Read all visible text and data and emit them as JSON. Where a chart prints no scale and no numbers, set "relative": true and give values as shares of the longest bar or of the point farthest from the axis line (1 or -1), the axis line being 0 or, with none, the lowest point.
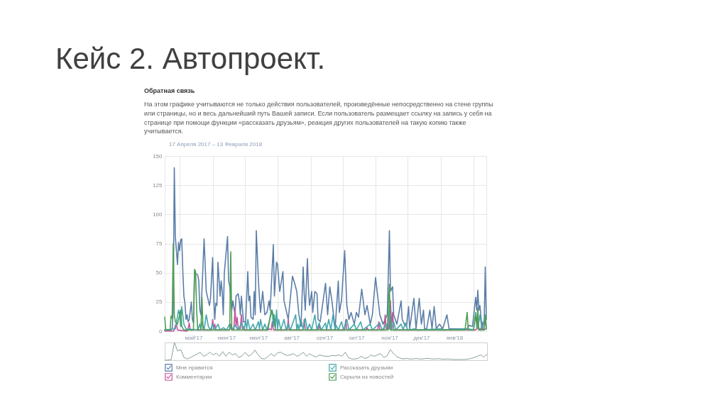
{
  "chart_data": [
    {
      "type": "line",
      "title": "Кейс 2. Автопроект.",
      "subtitle": "Обратная связь",
      "annotations": [
        "На этом графике учитываются не только действия пользователей, произведённые непосредственно на стене группы или страницы, но и весь дальнейший путь Вашей записи. Если пользователь размещает ссылку на запись у себя на странице при помощи функции «рассказать друзьям», реакция других пользователей на такую копию также учитывается.",
        "17 Апреля 2017 – 13 Февраля 2018"
      ],
      "xlim": [
        "2017-04-17",
        "2018-02-13"
      ],
      "xticks": [
        {
          "value": "2017-05-01",
          "label": null
        },
        {
          "value": "2017-05-14",
          "label": "май'17"
        },
        {
          "value": "2017-06-01",
          "label": null
        },
        {
          "value": "2017-06-14",
          "label": "июн'17"
        },
        {
          "value": "2017-07-01",
          "label": null
        },
        {
          "value": "2017-07-14",
          "label": "июл'17"
        },
        {
          "value": "2017-08-01",
          "label": null
        },
        {
          "value": "2017-08-14",
          "label": "авг'17"
        },
        {
          "value": "2017-09-01",
          "label": null
        },
        {
          "value": "2017-09-14",
          "label": "сен'17"
        },
        {
          "value": "2017-10-01",
          "label": null
        },
        {
          "value": "2017-10-14",
          "label": "окт'17"
        },
        {
          "value": "2017-11-01",
          "label": null
        },
        {
          "value": "2017-11-14",
          "label": "ноя'17"
        },
        {
          "value": "2017-12-01",
          "label": null
        },
        {
          "value": "2017-12-14",
          "label": "дек'17"
        },
        {
          "value": "2018-01-01",
          "label": null
        },
        {
          "value": "2018-01-14",
          "label": "янв'18"
        },
        {
          "value": "2018-02-01",
          "label": null
        }
      ],
      "ylim": [
        0,
        150
      ],
      "yticks": [
        0,
        25,
        50,
        75,
        100,
        125,
        150
      ],
      "grid": true,
      "legend": "bottom",
      "series": [
        {
          "name": "Мне нравится",
          "color": "#5b7ea8",
          "x": [
            "2017-04-17",
            "2017-04-23",
            "2017-04-24",
            "2017-04-25",
            "2017-04-26",
            "2017-04-27",
            "2017-04-28",
            "2017-04-29",
            "2017-04-30",
            "2017-05-01",
            "2017-05-02",
            "2017-05-03",
            "2017-05-04",
            "2017-05-05",
            "2017-05-06",
            "2017-05-07",
            "2017-05-08",
            "2017-05-09",
            "2017-05-10",
            "2017-05-12",
            "2017-05-13",
            "2017-05-14",
            "2017-05-15",
            "2017-05-18",
            "2017-05-19",
            "2017-05-20",
            "2017-05-21",
            "2017-05-24",
            "2017-05-26",
            "2017-05-28",
            "2017-05-29",
            "2017-05-30",
            "2017-06-01",
            "2017-06-02",
            "2017-06-03",
            "2017-06-04",
            "2017-06-05",
            "2017-06-06",
            "2017-06-08",
            "2017-06-09",
            "2017-06-10",
            "2017-06-11",
            "2017-06-12",
            "2017-06-15",
            "2017-06-16",
            "2017-06-17",
            "2017-06-18",
            "2017-06-19",
            "2017-06-20",
            "2017-06-22",
            "2017-06-23",
            "2017-06-25",
            "2017-06-26",
            "2017-06-27",
            "2017-06-28",
            "2017-06-30",
            "2017-07-02",
            "2017-07-04",
            "2017-07-05",
            "2017-07-06",
            "2017-07-07",
            "2017-07-09",
            "2017-07-10",
            "2017-07-11",
            "2017-07-12",
            "2017-07-14",
            "2017-07-15",
            "2017-07-16",
            "2017-07-18",
            "2017-07-19",
            "2017-07-20",
            "2017-07-22",
            "2017-07-24",
            "2017-07-25",
            "2017-07-28",
            "2017-07-29",
            "2017-07-31",
            "2017-08-01",
            "2017-08-03",
            "2017-08-06",
            "2017-08-07",
            "2017-08-09",
            "2017-08-11",
            "2017-08-15",
            "2017-08-17",
            "2017-08-19",
            "2017-08-21",
            "2017-08-23",
            "2017-08-25",
            "2017-08-26",
            "2017-08-27",
            "2017-08-29",
            "2017-08-30",
            "2017-08-31",
            "2017-09-02",
            "2017-09-03",
            "2017-09-05",
            "2017-09-07",
            "2017-09-08",
            "2017-09-10",
            "2017-09-15",
            "2017-09-17",
            "2017-09-19",
            "2017-09-21",
            "2017-09-24",
            "2017-09-27",
            "2017-09-28",
            "2017-09-30",
            "2017-10-03",
            "2017-10-05",
            "2017-10-07",
            "2017-10-09",
            "2017-10-12",
            "2017-10-14",
            "2017-10-16",
            "2017-10-19",
            "2017-10-22",
            "2017-10-24",
            "2017-10-27",
            "2017-10-29",
            "2017-11-01",
            "2017-11-03",
            "2017-11-05",
            "2017-11-08",
            "2017-11-12",
            "2017-11-14",
            "2017-11-15",
            "2017-11-17",
            "2017-11-18",
            "2017-11-21",
            "2017-11-23",
            "2017-11-25",
            "2017-11-26",
            "2017-11-28",
            "2017-11-30",
            "2017-12-02",
            "2017-12-03",
            "2017-12-07",
            "2017-12-09",
            "2017-12-12",
            "2017-12-14",
            "2017-12-16",
            "2017-12-17",
            "2017-12-19",
            "2017-12-22",
            "2017-12-24",
            "2017-12-26",
            "2017-12-28",
            "2017-12-31",
            "2018-01-03",
            "2018-01-07",
            "2018-01-09",
            "2018-01-18",
            "2018-01-26",
            "2018-01-28",
            "2018-01-31",
            "2018-02-03",
            "2018-02-04",
            "2018-02-05",
            "2018-02-06",
            "2018-02-07",
            "2018-02-09",
            "2018-02-11",
            "2018-02-12",
            "2018-02-13"
          ],
          "values": [
            1,
            1,
            2,
            18,
            140,
            81,
            69,
            57,
            76,
            69,
            78,
            79,
            51,
            30,
            24,
            10,
            14,
            8,
            10,
            25,
            10,
            7,
            50,
            48,
            43,
            18,
            14,
            79,
            34,
            26,
            22,
            28,
            63,
            30,
            10,
            24,
            22,
            59,
            30,
            43,
            34,
            14,
            50,
            81,
            43,
            39,
            30,
            18,
            26,
            14,
            30,
            32,
            26,
            14,
            30,
            8,
            8,
            51,
            26,
            30,
            12,
            10,
            34,
            14,
            86,
            43,
            28,
            16,
            34,
            24,
            14,
            16,
            26,
            18,
            74,
            30,
            59,
            57,
            34,
            51,
            26,
            18,
            10,
            47,
            41,
            34,
            14,
            4,
            55,
            32,
            18,
            62,
            36,
            22,
            34,
            16,
            34,
            32,
            10,
            8,
            41,
            14,
            38,
            26,
            2,
            43,
            16,
            26,
            69,
            22,
            10,
            16,
            6,
            16,
            12,
            36,
            14,
            22,
            6,
            14,
            46,
            30,
            14,
            6,
            14,
            86,
            34,
            38,
            14,
            6,
            16,
            26,
            10,
            6,
            4,
            21,
            2,
            28,
            2,
            28,
            6,
            18,
            2,
            2,
            18,
            2,
            21,
            2,
            6,
            2,
            14,
            2,
            2,
            2,
            5,
            4,
            29,
            18,
            35,
            18,
            22,
            2,
            8,
            55,
            10
          ]
        },
        {
          "name": "Комментарии",
          "color": "#c2569f",
          "x": [
            "2017-04-17",
            "2017-04-25",
            "2017-04-26",
            "2017-04-27",
            "2017-04-28",
            "2017-04-29",
            "2017-05-08",
            "2017-05-09",
            "2017-05-10",
            "2017-05-11",
            "2017-05-31",
            "2017-06-01",
            "2017-06-02",
            "2017-06-03",
            "2017-06-04",
            "2017-06-17",
            "2017-06-18",
            "2017-06-19",
            "2017-06-21",
            "2017-06-22",
            "2017-06-23",
            "2017-06-24",
            "2017-06-25",
            "2017-06-27",
            "2017-06-28",
            "2017-06-29",
            "2017-06-30",
            "2017-07-01",
            "2017-07-23",
            "2017-07-24",
            "2017-07-26",
            "2017-07-27",
            "2017-07-28",
            "2017-08-10",
            "2017-08-11",
            "2017-08-12",
            "2017-08-25",
            "2017-08-26",
            "2017-08-27",
            "2017-09-08",
            "2017-09-09",
            "2017-09-10",
            "2017-10-03",
            "2017-10-04",
            "2017-10-05",
            "2017-10-23",
            "2017-10-24",
            "2017-10-25",
            "2017-11-03",
            "2017-11-04",
            "2017-11-05",
            "2017-11-09",
            "2017-11-10",
            "2017-11-11",
            "2017-11-13",
            "2017-11-14",
            "2017-11-15",
            "2017-11-16",
            "2017-11-17",
            "2017-11-18",
            "2017-12-03",
            "2018-02-03",
            "2018-02-04",
            "2018-02-05",
            "2018-02-06",
            "2018-02-07",
            "2018-02-08",
            "2018-02-09",
            "2018-02-10",
            "2018-02-13"
          ],
          "values": [
            0,
            0,
            1,
            5,
            6,
            1,
            0,
            2,
            7,
            1,
            1,
            10,
            2,
            6,
            1,
            1,
            6,
            1,
            2,
            20,
            4,
            12,
            2,
            2,
            14,
            2,
            4,
            1,
            1,
            2,
            1,
            8,
            1,
            1,
            10,
            1,
            1,
            10,
            1,
            1,
            6,
            1,
            1,
            10,
            1,
            1,
            3,
            1,
            1,
            8,
            1,
            1,
            14,
            2,
            4,
            2,
            26,
            4,
            16,
            1,
            1,
            1,
            2,
            14,
            1,
            2,
            1,
            8,
            1,
            2
          ]
        },
        {
          "name": "Рассказать друзьям",
          "color": "#45a8ad",
          "x": [
            "2017-04-17",
            "2017-04-27",
            "2017-04-30",
            "2017-05-01",
            "2017-05-02",
            "2017-05-03",
            "2017-05-05",
            "2017-05-07",
            "2017-05-18",
            "2017-05-20",
            "2017-05-21",
            "2017-05-22",
            "2017-05-24",
            "2017-05-26",
            "2017-05-28",
            "2017-05-30",
            "2017-06-01",
            "2017-06-03",
            "2017-06-06",
            "2017-06-08",
            "2017-06-11",
            "2017-06-14",
            "2017-06-17",
            "2017-06-19",
            "2017-06-22",
            "2017-06-25",
            "2017-06-28",
            "2017-06-30",
            "2017-07-02",
            "2017-07-03",
            "2017-07-04",
            "2017-07-06",
            "2017-07-09",
            "2017-07-11",
            "2017-07-14",
            "2017-07-15",
            "2017-07-16",
            "2017-07-18",
            "2017-07-20",
            "2017-07-22",
            "2017-07-27",
            "2017-07-28",
            "2017-07-29",
            "2017-07-30",
            "2017-07-31",
            "2017-08-01",
            "2017-08-02",
            "2017-08-04",
            "2017-08-07",
            "2017-08-09",
            "2017-08-11",
            "2017-08-13",
            "2017-08-18",
            "2017-08-19",
            "2017-08-20",
            "2017-08-21",
            "2017-08-23",
            "2017-08-25",
            "2017-08-27",
            "2017-08-29",
            "2017-08-31",
            "2017-09-02",
            "2017-09-05",
            "2017-09-07",
            "2017-09-09",
            "2017-09-11",
            "2017-09-15",
            "2017-09-16",
            "2017-09-18",
            "2017-09-20",
            "2017-09-22",
            "2017-09-24",
            "2017-09-25",
            "2017-09-27",
            "2017-09-30",
            "2017-10-02",
            "2017-10-05",
            "2017-10-07",
            "2017-10-12",
            "2017-10-14",
            "2017-10-18",
            "2017-10-20",
            "2017-10-27",
            "2017-10-29",
            "2017-11-05",
            "2017-11-07",
            "2017-11-12",
            "2017-11-13",
            "2017-11-14",
            "2017-11-16",
            "2017-11-18",
            "2017-11-20",
            "2017-11-25",
            "2017-11-27",
            "2017-11-29",
            "2017-12-01",
            "2017-12-08",
            "2017-12-10",
            "2018-01-02",
            "2018-01-04",
            "2018-01-27",
            "2018-02-01",
            "2018-02-03",
            "2018-02-05",
            "2018-02-07",
            "2018-02-09",
            "2018-02-11",
            "2018-02-13"
          ],
          "values": [
            1,
            2,
            18,
            14,
            4,
            21,
            6,
            2,
            1,
            6,
            1,
            8,
            1,
            14,
            4,
            1,
            6,
            1,
            6,
            1,
            3,
            1,
            6,
            1,
            5,
            1,
            7,
            1,
            8,
            2,
            10,
            1,
            6,
            1,
            8,
            2,
            10,
            1,
            6,
            1,
            18,
            4,
            14,
            3,
            18,
            2,
            10,
            1,
            10,
            1,
            6,
            1,
            14,
            1,
            6,
            1,
            10,
            1,
            11,
            1,
            6,
            1,
            14,
            1,
            7,
            1,
            7,
            1,
            10,
            1,
            14,
            1,
            5,
            1,
            8,
            1,
            10,
            1,
            6,
            1,
            8,
            1,
            6,
            1,
            7,
            1,
            6,
            1,
            22,
            1,
            8,
            1,
            6,
            1,
            7,
            1,
            2,
            1,
            2,
            1,
            2,
            1,
            16,
            2,
            14,
            1,
            10,
            3
          ]
        },
        {
          "name": "Скрыли из новостей",
          "color": "#4f9e55",
          "x": [
            "2017-04-17",
            "2017-04-18",
            "2017-04-22",
            "2017-04-23",
            "2017-04-24",
            "2017-04-25",
            "2017-04-26",
            "2017-04-27",
            "2017-04-29",
            "2017-05-01",
            "2017-05-02",
            "2017-05-03",
            "2017-05-05",
            "2017-05-14",
            "2017-05-15",
            "2017-05-16",
            "2017-05-17",
            "2017-05-18",
            "2017-05-21",
            "2017-05-22",
            "2017-05-23",
            "2017-06-17",
            "2017-06-18",
            "2017-06-19",
            "2017-07-23",
            "2017-07-26",
            "2017-07-28",
            "2017-07-30",
            "2017-11-12",
            "2017-11-14",
            "2017-11-15",
            "2018-01-24",
            "2018-01-26",
            "2018-01-27",
            "2018-02-01",
            "2018-02-03",
            "2018-02-04",
            "2018-02-05",
            "2018-02-06",
            "2018-02-11",
            "2018-02-12",
            "2018-02-13"
          ],
          "values": [
            12,
            1,
            1,
            13,
            11,
            75,
            14,
            8,
            6,
            14,
            18,
            4,
            1,
            1,
            53,
            51,
            18,
            1,
            1,
            29,
            1,
            1,
            68,
            1,
            1,
            18,
            14,
            1,
            1,
            40,
            1,
            1,
            16,
            1,
            1,
            14,
            4,
            20,
            1,
            1,
            14,
            2
          ]
        }
      ]
    },
    {
      "type": "line",
      "relative": true,
      "color": "#8a9f95",
      "categories": [
        null,
        null,
        null,
        null,
        null,
        null,
        null,
        null,
        null,
        null,
        null,
        null,
        null,
        null,
        null,
        null,
        null,
        null,
        null,
        null,
        null,
        null,
        null,
        null,
        null,
        null,
        null,
        null,
        null,
        null,
        null,
        null,
        null,
        null,
        null,
        null,
        null,
        null,
        null,
        null,
        null,
        null,
        null,
        null,
        null,
        null,
        null,
        null,
        null,
        null,
        null,
        null,
        null,
        null,
        null,
        null,
        null,
        null,
        null,
        null,
        null,
        null,
        null,
        null,
        null,
        null,
        null,
        null,
        null,
        null,
        null,
        null,
        null,
        null,
        null,
        null,
        null,
        null,
        null,
        null,
        null,
        null,
        null,
        null,
        null,
        null,
        null,
        null,
        null,
        null,
        null,
        null,
        null,
        null,
        null,
        null,
        null,
        null,
        null,
        null,
        null
      ],
      "values": [
        0,
        0.01,
        0.03,
        1,
        0.52,
        0.6,
        0.15,
        0.07,
        0.15,
        0.25,
        0.34,
        0.45,
        0.22,
        0.3,
        0.45,
        0.3,
        0.4,
        0.22,
        0.49,
        0.22,
        0.45,
        0.3,
        0.37,
        0.15,
        0.25,
        0.45,
        0.22,
        0.34,
        0.57,
        0.3,
        0.1,
        0.07,
        0.2,
        0.37,
        0.22,
        0.42,
        0.45,
        0.34,
        0.27,
        0.3,
        0.37,
        0.22,
        0.3,
        0.45,
        0.22,
        0.37,
        0.25,
        0.18,
        0.3,
        0.25,
        0.22,
        0.22,
        0.27,
        0.25,
        0.3,
        0.22,
        0.45,
        0.15,
        0.07,
        0.07,
        0.1,
        0.22,
        0.1,
        0.15,
        0.3,
        0.22,
        0.3,
        0.37,
        0.15,
        0.25,
        0.6,
        0.37,
        0.2,
        0.12,
        0.07,
        0.1,
        0.07,
        0.07,
        0.1,
        0.07,
        0.07,
        0.1,
        0.1,
        0.07,
        0.07,
        0.09,
        0.06,
        0.06,
        0.07,
        0.04,
        0.04,
        0.04,
        0.04,
        0.04,
        0.06,
        0.1,
        0.15,
        0.22,
        0.3,
        0.18,
        0.33
      ]
    }
  ]
}
